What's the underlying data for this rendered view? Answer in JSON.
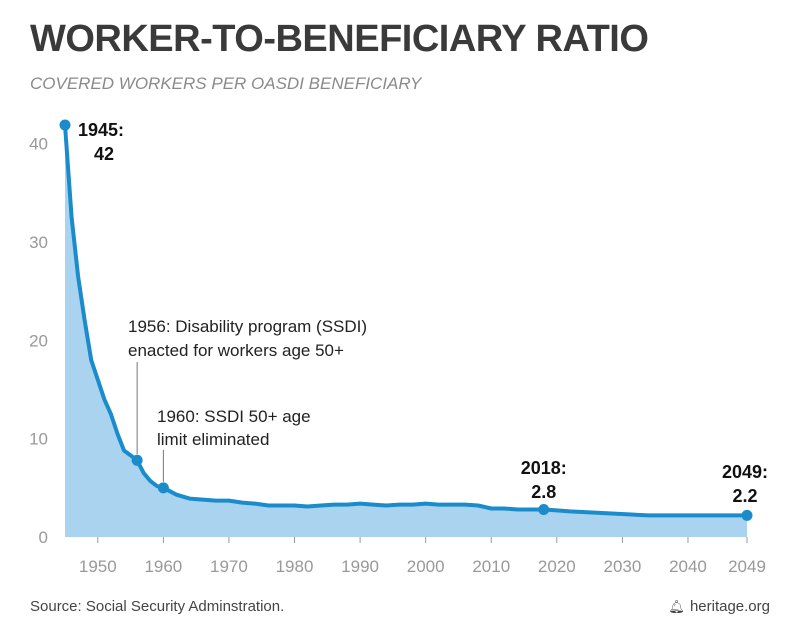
{
  "title": "WORKER-TO-BENEFICIARY RATIO",
  "subtitle": "COVERED WORKERS PER OASDI BENEFICIARY",
  "footer": {
    "source": "Source: Social Security Adminstration.",
    "brand": "heritage.org",
    "brand_icon": "bell-icon"
  },
  "colors": {
    "line": "#1a8ccc",
    "area": "#a9d3ef",
    "text": "#3a3a3a",
    "axis": "#999999"
  },
  "chart_data": {
    "type": "area",
    "title": "WORKER-TO-BENEFICIARY RATIO",
    "subtitle": "COVERED WORKERS PER OASDI BENEFICIARY",
    "xlabel": "",
    "ylabel": "",
    "xlim": [
      1945,
      2049
    ],
    "ylim": [
      0,
      42
    ],
    "x_ticks": [
      1950,
      1960,
      1970,
      1980,
      1990,
      2000,
      2010,
      2020,
      2030,
      2040,
      2049
    ],
    "y_ticks": [
      0,
      10,
      20,
      30,
      40
    ],
    "series": [
      {
        "name": "Covered workers per OASDI beneficiary",
        "x": [
          1945,
          1946,
          1947,
          1948,
          1949,
          1950,
          1951,
          1952,
          1953,
          1954,
          1955,
          1956,
          1957,
          1958,
          1959,
          1960,
          1962,
          1964,
          1966,
          1968,
          1970,
          1972,
          1974,
          1976,
          1978,
          1980,
          1982,
          1984,
          1986,
          1988,
          1990,
          1992,
          1994,
          1996,
          1998,
          2000,
          2002,
          2004,
          2006,
          2008,
          2010,
          2012,
          2014,
          2016,
          2018,
          2020,
          2022,
          2025,
          2028,
          2031,
          2034,
          2040,
          2049
        ],
        "values": [
          41.9,
          32.5,
          26.5,
          22.0,
          18.0,
          16.0,
          14.0,
          12.5,
          10.5,
          8.8,
          8.3,
          7.8,
          6.5,
          5.7,
          5.2,
          5.0,
          4.3,
          3.9,
          3.8,
          3.7,
          3.7,
          3.5,
          3.4,
          3.2,
          3.2,
          3.2,
          3.1,
          3.2,
          3.3,
          3.3,
          3.4,
          3.3,
          3.2,
          3.3,
          3.3,
          3.4,
          3.3,
          3.3,
          3.3,
          3.2,
          2.9,
          2.9,
          2.8,
          2.8,
          2.8,
          2.7,
          2.6,
          2.5,
          2.4,
          2.3,
          2.2,
          2.2,
          2.2
        ]
      }
    ],
    "highlight_points": [
      {
        "x": 1945,
        "y": 41.9,
        "label_year": "1945:",
        "label_value": "42"
      },
      {
        "x": 1956,
        "y": 7.8
      },
      {
        "x": 1960,
        "y": 5.0
      },
      {
        "x": 2018,
        "y": 2.8,
        "label_year": "2018:",
        "label_value": "2.8"
      },
      {
        "x": 2049,
        "y": 2.2,
        "label_year": "2049:",
        "label_value": "2.2"
      }
    ],
    "annotations": [
      {
        "x": 1956,
        "y": 7.8,
        "line1": "1956: Disability program (SSDI)",
        "line2": "enacted for workers age 50+"
      },
      {
        "x": 1960,
        "y": 5.0,
        "line1": "1960: SSDI 50+ age",
        "line2": "limit eliminated"
      }
    ]
  }
}
